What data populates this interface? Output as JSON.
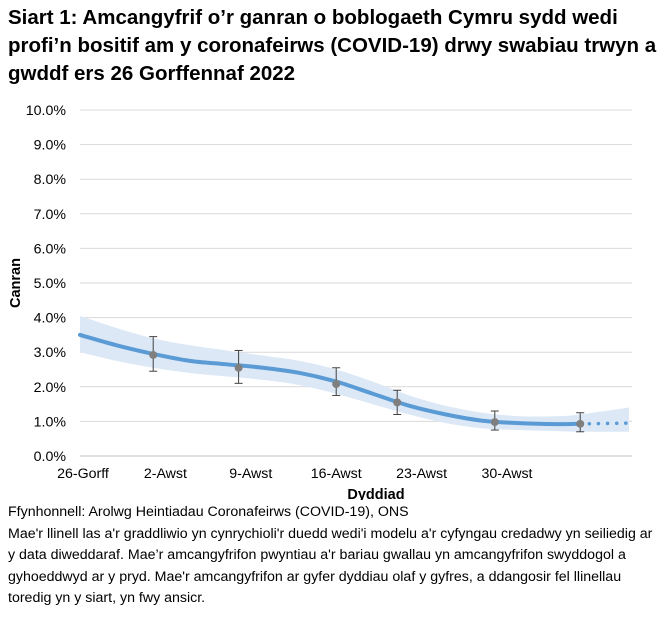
{
  "title": "Siart 1: Amcangyfrif o’r ganran o boblogaeth Cymru sydd wedi profi’n bositif am y coronafeirws (COVID-19) drwy swabiau trwyn a gwddf ers 26 Gorffennaf 2022",
  "source": "Ffynhonnell: Arolwg Heintiadau Coronafeirws (COVID-19), ONS",
  "note": "Mae'r llinell las a'r graddliwio yn cynrychioli'r duedd wedi'i modelu a'r cyfyngau credadwy yn seiliedig ar y data diweddaraf. Mae’r amcangyfrifon pwyntiau a'r bariau gwallau yn amcangyfrifon swyddogol a gyhoeddwyd ar y pryd. Mae'r amcangyfrifon ar gyfer dyddiau olaf y gyfres, a ddangosir fel llinellau toredig yn y siart, yn fwy ansicr.",
  "chart_data": {
    "type": "line",
    "xlabel": "Dyddiad",
    "ylabel": "Canran",
    "ylim": [
      0,
      10
    ],
    "yticks": [
      "0.0%",
      "1.0%",
      "2.0%",
      "3.0%",
      "4.0%",
      "5.0%",
      "6.0%",
      "7.0%",
      "8.0%",
      "9.0%",
      "10.0%"
    ],
    "xticks": [
      {
        "date": "2022-07-26",
        "label": "26-Gorff"
      },
      {
        "date": "2022-08-02",
        "label": "2-Awst"
      },
      {
        "date": "2022-08-09",
        "label": "9-Awst"
      },
      {
        "date": "2022-08-16",
        "label": "16-Awst"
      },
      {
        "date": "2022-08-23",
        "label": "23-Awst"
      },
      {
        "date": "2022-08-30",
        "label": "30-Awst"
      }
    ],
    "xrange": [
      "2022-07-26",
      "2022-09-10"
    ],
    "grid": true,
    "colors": {
      "trend": "#5b9bd5",
      "band": "#dce8f6",
      "points": "#7f7f7f",
      "grid": "#d9d9d9"
    },
    "modelled": [
      {
        "date": "2022-07-26",
        "value": 3.5,
        "lower": 3.0,
        "upper": 4.05
      },
      {
        "date": "2022-07-29",
        "value": 3.2,
        "lower": 2.75,
        "upper": 3.7
      },
      {
        "date": "2022-08-01",
        "value": 2.95,
        "lower": 2.55,
        "upper": 3.4
      },
      {
        "date": "2022-08-04",
        "value": 2.75,
        "lower": 2.4,
        "upper": 3.2
      },
      {
        "date": "2022-08-07",
        "value": 2.65,
        "lower": 2.3,
        "upper": 3.05
      },
      {
        "date": "2022-08-10",
        "value": 2.55,
        "lower": 2.2,
        "upper": 2.9
      },
      {
        "date": "2022-08-13",
        "value": 2.4,
        "lower": 2.05,
        "upper": 2.75
      },
      {
        "date": "2022-08-16",
        "value": 2.15,
        "lower": 1.8,
        "upper": 2.5
      },
      {
        "date": "2022-08-19",
        "value": 1.8,
        "lower": 1.5,
        "upper": 2.15
      },
      {
        "date": "2022-08-22",
        "value": 1.45,
        "lower": 1.2,
        "upper": 1.75
      },
      {
        "date": "2022-08-25",
        "value": 1.2,
        "lower": 0.95,
        "upper": 1.45
      },
      {
        "date": "2022-08-28",
        "value": 1.02,
        "lower": 0.8,
        "upper": 1.25
      },
      {
        "date": "2022-08-31",
        "value": 0.95,
        "lower": 0.75,
        "upper": 1.15
      },
      {
        "date": "2022-09-03",
        "value": 0.92,
        "lower": 0.72,
        "upper": 1.15
      },
      {
        "date": "2022-09-05",
        "value": 0.93,
        "lower": 0.7,
        "upper": 1.2
      },
      {
        "date": "2022-09-09",
        "value": 0.95,
        "lower": 0.7,
        "upper": 1.4
      }
    ],
    "uncertain_from": "2022-09-05",
    "official_estimates": [
      {
        "date": "2022-08-01",
        "value": 2.92,
        "lower": 2.45,
        "upper": 3.45
      },
      {
        "date": "2022-08-08",
        "value": 2.55,
        "lower": 2.1,
        "upper": 3.05
      },
      {
        "date": "2022-08-16",
        "value": 2.08,
        "lower": 1.75,
        "upper": 2.55
      },
      {
        "date": "2022-08-21",
        "value": 1.55,
        "lower": 1.2,
        "upper": 1.9
      },
      {
        "date": "2022-08-29",
        "value": 0.98,
        "lower": 0.75,
        "upper": 1.3
      },
      {
        "date": "2022-09-05",
        "value": 0.93,
        "lower": 0.7,
        "upper": 1.25
      }
    ]
  }
}
